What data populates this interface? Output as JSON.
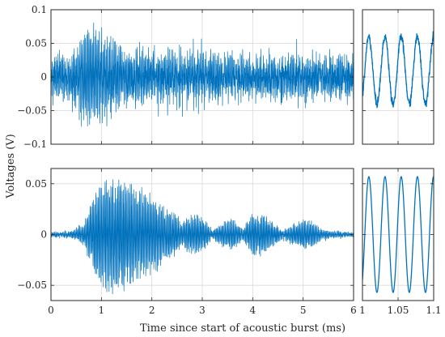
{
  "chart_data": {
    "type": "line",
    "grid": true,
    "ylabel": "Voltages (V)",
    "xlabel": "Time since start of acoustic burst (ms)",
    "series_color": "#0072BD",
    "panels": [
      {
        "id": "top-main",
        "xlim": [
          0,
          6
        ],
        "ylim": [
          -0.1,
          0.1
        ],
        "xticks": [
          0,
          1,
          2,
          3,
          4,
          5,
          6
        ],
        "xtick_labels": [],
        "yticks": [
          -0.1,
          -0.05,
          0,
          0.05,
          0.1
        ],
        "ytick_labels": [
          "−0.1",
          "−0.05",
          "0",
          "0.05",
          "0.1"
        ],
        "envelope": {
          "t": [
            0,
            0.3,
            0.5,
            0.65,
            0.8,
            1.0,
            1.2,
            1.5,
            2.0,
            3.0,
            4.0,
            5.0,
            6.0
          ],
          "amp": [
            0.018,
            0.022,
            0.04,
            0.065,
            0.07,
            0.06,
            0.05,
            0.035,
            0.03,
            0.027,
            0.024,
            0.02,
            0.018
          ]
        },
        "noise": 0.012
      },
      {
        "id": "top-zoom",
        "xlim": [
          1,
          1.1
        ],
        "ylim": [
          -0.1,
          0.1
        ],
        "xticks": [
          1,
          1.05,
          1.1
        ],
        "xtick_labels": [],
        "yticks": [
          -0.1,
          -0.05,
          0,
          0.05,
          0.1
        ],
        "ytick_labels": [],
        "sine": {
          "amplitude": 0.05,
          "periods": 4.4,
          "offset": 0.01,
          "noise": 0.006
        }
      },
      {
        "id": "bottom-main",
        "xlim": [
          0,
          6
        ],
        "ylim": [
          -0.065,
          0.065
        ],
        "xticks": [
          0,
          1,
          2,
          3,
          4,
          5,
          6
        ],
        "xtick_labels": [
          "0",
          "1",
          "2",
          "3",
          "4",
          "5",
          "6"
        ],
        "yticks": [
          -0.05,
          0,
          0.05
        ],
        "ytick_labels": [
          "−0.05",
          "0",
          "0.05"
        ],
        "envelope": {
          "t": [
            0,
            0.4,
            0.65,
            0.85,
            1.0,
            1.2,
            1.5,
            1.8,
            2.0,
            2.2,
            2.45,
            2.6,
            2.75,
            2.9,
            3.05,
            3.2,
            3.4,
            3.6,
            3.8,
            4.0,
            4.2,
            4.4,
            4.6,
            4.8,
            5.0,
            5.2,
            5.4,
            5.6,
            6.0
          ],
          "amp": [
            0.002,
            0.003,
            0.01,
            0.04,
            0.055,
            0.06,
            0.052,
            0.045,
            0.04,
            0.03,
            0.022,
            0.012,
            0.02,
            0.021,
            0.014,
            0.004,
            0.012,
            0.016,
            0.006,
            0.022,
            0.02,
            0.012,
            0.004,
            0.01,
            0.015,
            0.012,
            0.004,
            0.003,
            0.002
          ]
        },
        "noise": 0.0015
      },
      {
        "id": "bottom-zoom",
        "xlim": [
          1,
          1.1
        ],
        "ylim": [
          -0.065,
          0.065
        ],
        "xticks": [
          1,
          1.05,
          1.1
        ],
        "xtick_labels": [
          "1",
          "1.05",
          "1.1"
        ],
        "yticks": [
          -0.05,
          0,
          0.05
        ],
        "ytick_labels": [],
        "sine": {
          "amplitude": 0.057,
          "periods": 4.4,
          "offset": 0.0,
          "noise": 0.0
        }
      }
    ]
  }
}
